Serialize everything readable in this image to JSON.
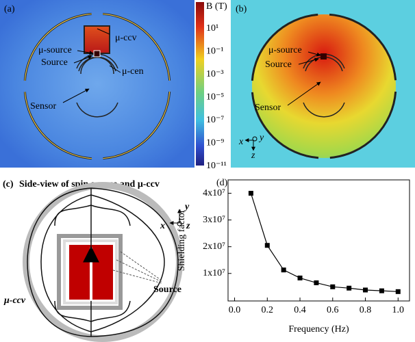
{
  "panels": {
    "a": {
      "label": "(a)",
      "ccv": "μ-ccv",
      "usource": "μ-source",
      "source": "Source",
      "cen": "μ-cen",
      "sensor": "Sensor"
    },
    "colorbar": {
      "title": "B (T)",
      "ticks": [
        "10¹",
        "10⁻¹",
        "10⁻³",
        "10⁻⁵",
        "10⁻⁷",
        "10⁻⁹",
        "10⁻¹¹"
      ]
    },
    "b": {
      "label": "(b)",
      "usource": "μ-source",
      "source": "Source",
      "sensor": "Sensor",
      "x": "x",
      "y": "y",
      "z": "z"
    },
    "c": {
      "label": "(c)",
      "title": "Side-view of spin source and μ-ccv",
      "y": "y",
      "x": "x",
      "z": "z",
      "source": "Source",
      "ccv": "μ-ccv"
    },
    "d": {
      "label": "(d)"
    }
  },
  "chart_data": {
    "type": "line",
    "x_label": "Frequency (Hz)",
    "y_label": "Shielding factor",
    "color": "#000000",
    "x": [
      0.1,
      0.2,
      0.3,
      0.4,
      0.5,
      0.6,
      0.7,
      0.8,
      0.9,
      1.0
    ],
    "values": [
      40000000,
      20500000,
      11300000,
      8300000,
      6500000,
      5000000,
      4500000,
      3800000,
      3500000,
      3200000
    ],
    "xlim": [
      -0.04,
      1.07
    ],
    "ylim": [
      -300000,
      45000000
    ],
    "xticks": [
      {
        "value": 0,
        "label": "0.0"
      },
      0.2,
      0.4,
      0.6,
      0.8,
      {
        "value": 1,
        "label": "1.0"
      }
    ],
    "yticks": [
      {
        "value": 10000000,
        "label": "1x10⁷"
      },
      {
        "value": 20000000,
        "label": "2x10⁷"
      },
      {
        "value": 30000000,
        "label": "3x10⁷"
      },
      {
        "value": 40000000,
        "label": "4x10⁷"
      }
    ]
  }
}
